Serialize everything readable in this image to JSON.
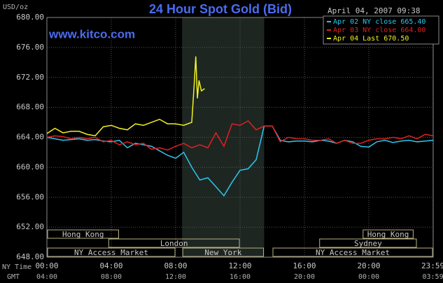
{
  "chart_data": {
    "type": "line",
    "title": "24 Hour Spot Gold (Bid)",
    "subtitle": "www.kitco.com",
    "y_label": "USD/oz",
    "timestamp": "April 04, 2007 09:38",
    "x_label": "NY Time",
    "x2_label": "GMT",
    "xlim": [
      0,
      24
    ],
    "xticks": [
      {
        "value": 0,
        "label": "00:00"
      },
      {
        "value": 4,
        "label": "04:00"
      },
      {
        "value": 8,
        "label": "08:00"
      },
      {
        "value": 12,
        "label": "12:00"
      },
      {
        "value": 16,
        "label": "16:00"
      },
      {
        "value": 20,
        "label": "20:00"
      },
      {
        "value": 23.98,
        "label": "23:59"
      }
    ],
    "x2ticks": [
      {
        "value": 0,
        "label": "04:00"
      },
      {
        "value": 4,
        "label": "08:00"
      },
      {
        "value": 8,
        "label": "12:00"
      },
      {
        "value": 12,
        "label": "16:00"
      },
      {
        "value": 16,
        "label": "20:00"
      },
      {
        "value": 20,
        "label": "00:00"
      },
      {
        "value": 23.98,
        "label": "03:59"
      }
    ],
    "ylim": [
      648,
      680
    ],
    "yticks": [
      {
        "value": 648,
        "label": "648.00"
      },
      {
        "value": 652,
        "label": "652.00"
      },
      {
        "value": 656,
        "label": "656.00"
      },
      {
        "value": 660,
        "label": "660.00"
      },
      {
        "value": 664,
        "label": "664.00"
      },
      {
        "value": 668,
        "label": "668.00"
      },
      {
        "value": 672,
        "label": "672.00"
      },
      {
        "value": 676,
        "label": "676.00"
      },
      {
        "value": 680,
        "label": "680.00"
      }
    ],
    "grid": true,
    "legend": "top-right",
    "sessions": [
      {
        "label": "Hong Kong",
        "start": 0,
        "end": 4.5
      },
      {
        "label": "London",
        "start": 3.8,
        "end": 12
      },
      {
        "label": "NY Access Market",
        "start": 0,
        "end": 8
      },
      {
        "label": "New York",
        "start": 8.4,
        "end": 13.5
      },
      {
        "label": "NY Access Market",
        "start": 14,
        "end": 24
      },
      {
        "label": "Hong Kong",
        "start": 19.6,
        "end": 22.8
      },
      {
        "label": "Sydney",
        "start": 16.9,
        "end": 23
      }
    ],
    "series": [
      {
        "name": "Apr 02 NY close 665.40",
        "color": "#2cc6f0",
        "x": [
          0,
          0.5,
          1,
          1.5,
          2,
          2.5,
          3,
          3.5,
          4,
          4.5,
          5,
          5.5,
          6,
          6.5,
          7,
          7.5,
          8,
          8.5,
          9,
          9.5,
          10,
          10.5,
          11,
          11.5,
          12,
          12.5,
          13,
          13.5,
          14,
          14.5,
          15,
          15.5,
          16,
          16.5,
          17,
          17.5,
          18,
          18.5,
          19,
          19.5,
          20,
          20.5,
          21,
          21.5,
          22,
          22.5,
          23,
          23.5,
          24
        ],
        "values": [
          664,
          663.8,
          663.6,
          663.7,
          663.8,
          663.6,
          663.7,
          663.5,
          663.4,
          663.6,
          662.6,
          663.2,
          663,
          662.8,
          662.2,
          661.6,
          661.2,
          662,
          660,
          658.3,
          658.6,
          657.4,
          656.2,
          658,
          659.6,
          659.8,
          661,
          665.5,
          665.5,
          663.6,
          663.4,
          663.5,
          663.5,
          663.4,
          663.6,
          663.5,
          663.2,
          663.6,
          663.4,
          662.8,
          662.7,
          663.4,
          663.6,
          663.3,
          663.5,
          663.6,
          663.4,
          663.5,
          663.6
        ]
      },
      {
        "name": "Apr 03 NY close 664.00",
        "color": "#e02020",
        "x": [
          0,
          0.5,
          1,
          1.5,
          2,
          2.5,
          3,
          3.5,
          4,
          4.5,
          5,
          5.5,
          6,
          6.5,
          7,
          7.5,
          8,
          8.5,
          9,
          9.5,
          10,
          10.5,
          11,
          11.5,
          12,
          12.5,
          13,
          13.5,
          14,
          14.5,
          15,
          15.5,
          16,
          16.5,
          17,
          17.5,
          18,
          18.5,
          19,
          19.5,
          20,
          20.5,
          21,
          21.5,
          22,
          22.5,
          23,
          23.5,
          24
        ],
        "values": [
          664,
          664.2,
          664.1,
          663.8,
          664,
          663.8,
          664,
          663.4,
          663.6,
          663,
          663.4,
          663,
          663.2,
          662.4,
          662.6,
          662.3,
          662.8,
          663.2,
          662.6,
          663,
          662.6,
          664.6,
          662.8,
          665.8,
          665.6,
          666.2,
          665,
          665.5,
          665.5,
          663.4,
          664,
          663.8,
          663.8,
          663.6,
          663.6,
          663.8,
          663.2,
          663.6,
          663.2,
          663.2,
          663.6,
          663.8,
          663.8,
          664,
          663.8,
          664.2,
          663.8,
          664.4,
          664.2
        ]
      },
      {
        "name": "Apr 04 Last 670.50",
        "color": "#f0f020",
        "x": [
          0,
          0.5,
          1,
          1.5,
          2,
          2.5,
          3,
          3.5,
          4,
          4.5,
          5,
          5.5,
          6,
          6.5,
          7,
          7.5,
          8,
          8.5,
          9,
          9.15,
          9.25,
          9.35,
          9.45,
          9.6,
          9.8
        ],
        "values": [
          664.5,
          665.2,
          664.6,
          664.8,
          664.8,
          664.4,
          664.2,
          665.4,
          665.6,
          665.2,
          665,
          665.8,
          665.6,
          666,
          666.4,
          665.8,
          665.8,
          665.6,
          666,
          671,
          674.8,
          669.2,
          671.6,
          670.2,
          670.5
        ]
      }
    ]
  }
}
